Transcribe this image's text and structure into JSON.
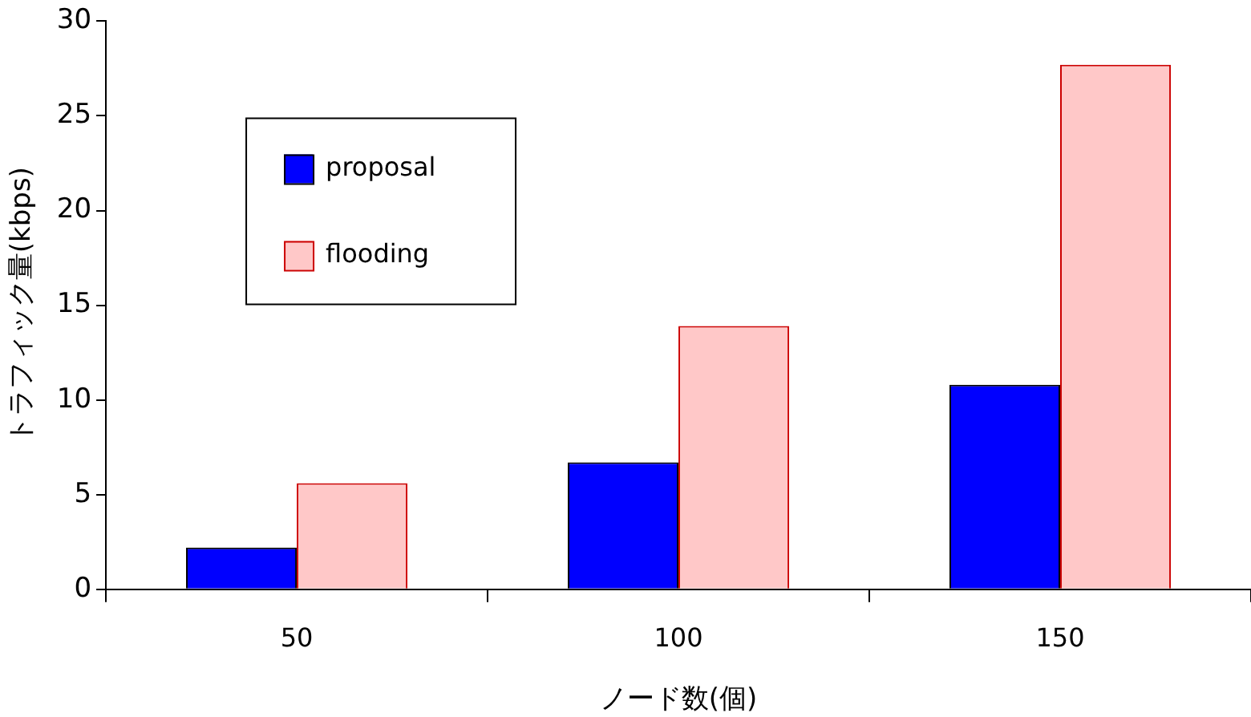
{
  "chart_data": {
    "type": "bar",
    "xlabel": "ノード数(個)",
    "ylabel": "トラフィック量(kbps)",
    "categories": [
      "50",
      "100",
      "150"
    ],
    "series": [
      {
        "name": "proposal",
        "color": "#0000ff",
        "values": [
          2.2,
          6.7,
          10.8
        ]
      },
      {
        "name": "flooding",
        "color": "#ffc8c8",
        "values": [
          5.6,
          13.9,
          27.7
        ]
      }
    ],
    "ylim": [
      0,
      30
    ],
    "yticks": [
      0,
      5,
      10,
      15,
      20,
      25,
      30
    ],
    "grid": false,
    "legend": "top left"
  }
}
